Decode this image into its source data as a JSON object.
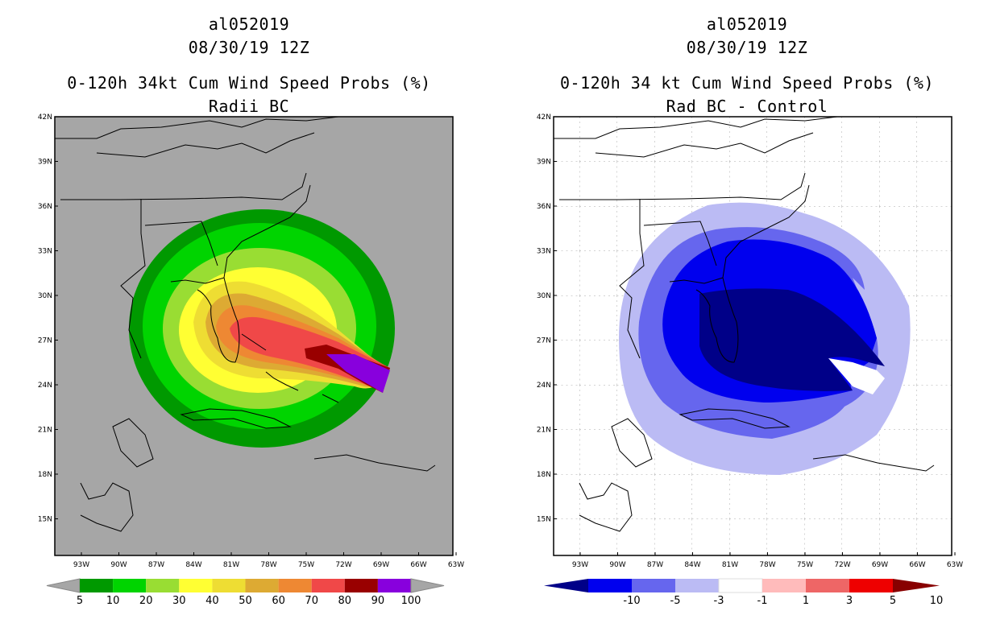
{
  "left": {
    "storm_id": "al052019",
    "datetime": "08/30/19 12Z",
    "title": "0-120h 34kt Cum Wind Speed Probs (%)",
    "subtitle": "Radii BC",
    "background_color": "#a6a6a6",
    "colorbar": {
      "labels": [
        "5",
        "10",
        "20",
        "30",
        "40",
        "50",
        "60",
        "70",
        "80",
        "90",
        "100"
      ],
      "colors": [
        "#009900",
        "#00d400",
        "#99dd33",
        "#ffff33",
        "#eedd33",
        "#ddaa33",
        "#ee8833",
        "#f04848",
        "#990000",
        "#8800dd"
      ],
      "end_color": "#a6a6a6"
    }
  },
  "right": {
    "storm_id": "al052019",
    "datetime": "08/30/19 12Z",
    "title": "0-120h 34 kt Cum Wind Speed Probs (%)",
    "subtitle": "Rad BC - Control",
    "background_color": "#ffffff",
    "colorbar": {
      "labels": [
        "-10",
        "-5",
        "-3",
        "-1",
        "1",
        "3",
        "5",
        "10"
      ],
      "colors": [
        "#000088",
        "#0000ee",
        "#6666ee",
        "#bbbbf4",
        "#ffffff",
        "#ffbbbb",
        "#ee6666",
        "#ee0000",
        "#880000"
      ]
    }
  },
  "lat_labels": [
    "42N",
    "39N",
    "36N",
    "33N",
    "30N",
    "27N",
    "24N",
    "21N",
    "18N",
    "15N"
  ],
  "lon_labels": [
    "93W",
    "90W",
    "87W",
    "84W",
    "81W",
    "78W",
    "75W",
    "72W",
    "69W",
    "66W",
    "63W"
  ]
}
